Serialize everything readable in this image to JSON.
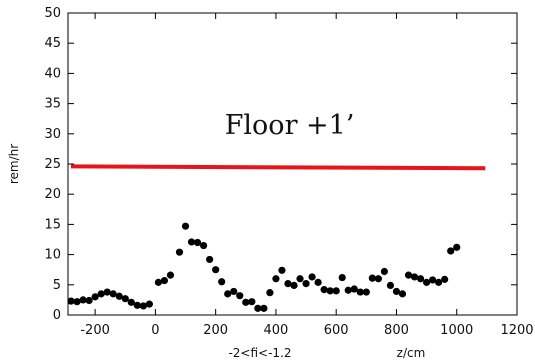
{
  "chart_data": {
    "type": "scatter",
    "title": "",
    "ylabel": "rem/hr",
    "xlabel": "z/cm",
    "x_caption": "-2<fi<-1.2",
    "xlim": [
      -290,
      1200
    ],
    "ylim": [
      0,
      50
    ],
    "xticks": [
      -200,
      0,
      200,
      400,
      600,
      800,
      1000,
      1200
    ],
    "yticks": [
      0,
      5,
      10,
      15,
      20,
      25,
      30,
      35,
      40,
      45,
      50
    ],
    "grid": false,
    "annotation": {
      "text": "Floor +1’",
      "x": 230,
      "y": 30
    },
    "reference_line": {
      "x": [
        -280,
        1095
      ],
      "y": [
        24.6,
        24.3
      ],
      "color": "#e8141b"
    },
    "marker_color": "#000000",
    "points": [
      {
        "x": -280,
        "y": 2.3
      },
      {
        "x": -260,
        "y": 2.2
      },
      {
        "x": -240,
        "y": 2.5
      },
      {
        "x": -220,
        "y": 2.4
      },
      {
        "x": -200,
        "y": 3.0
      },
      {
        "x": -180,
        "y": 3.5
      },
      {
        "x": -160,
        "y": 3.8
      },
      {
        "x": -140,
        "y": 3.5
      },
      {
        "x": -120,
        "y": 3.1
      },
      {
        "x": -100,
        "y": 2.7
      },
      {
        "x": -80,
        "y": 2.1
      },
      {
        "x": -60,
        "y": 1.6
      },
      {
        "x": -40,
        "y": 1.5
      },
      {
        "x": -20,
        "y": 1.8
      },
      {
        "x": 10,
        "y": 5.4
      },
      {
        "x": 30,
        "y": 5.7
      },
      {
        "x": 50,
        "y": 6.6
      },
      {
        "x": 80,
        "y": 10.4
      },
      {
        "x": 100,
        "y": 14.7
      },
      {
        "x": 120,
        "y": 12.1
      },
      {
        "x": 140,
        "y": 12.0
      },
      {
        "x": 160,
        "y": 11.5
      },
      {
        "x": 180,
        "y": 9.2
      },
      {
        "x": 200,
        "y": 7.5
      },
      {
        "x": 220,
        "y": 5.5
      },
      {
        "x": 240,
        "y": 3.5
      },
      {
        "x": 260,
        "y": 3.9
      },
      {
        "x": 280,
        "y": 3.2
      },
      {
        "x": 300,
        "y": 2.1
      },
      {
        "x": 320,
        "y": 2.2
      },
      {
        "x": 340,
        "y": 1.1
      },
      {
        "x": 360,
        "y": 1.1
      },
      {
        "x": 380,
        "y": 3.7
      },
      {
        "x": 400,
        "y": 6.0
      },
      {
        "x": 420,
        "y": 7.4
      },
      {
        "x": 440,
        "y": 5.2
      },
      {
        "x": 460,
        "y": 4.9
      },
      {
        "x": 480,
        "y": 6.0
      },
      {
        "x": 500,
        "y": 5.2
      },
      {
        "x": 520,
        "y": 6.3
      },
      {
        "x": 540,
        "y": 5.4
      },
      {
        "x": 560,
        "y": 4.2
      },
      {
        "x": 580,
        "y": 4.0
      },
      {
        "x": 600,
        "y": 4.0
      },
      {
        "x": 620,
        "y": 6.2
      },
      {
        "x": 640,
        "y": 4.1
      },
      {
        "x": 660,
        "y": 4.3
      },
      {
        "x": 680,
        "y": 3.8
      },
      {
        "x": 700,
        "y": 3.8
      },
      {
        "x": 720,
        "y": 6.1
      },
      {
        "x": 740,
        "y": 6.0
      },
      {
        "x": 760,
        "y": 7.2
      },
      {
        "x": 780,
        "y": 4.9
      },
      {
        "x": 800,
        "y": 3.9
      },
      {
        "x": 820,
        "y": 3.5
      },
      {
        "x": 840,
        "y": 6.6
      },
      {
        "x": 860,
        "y": 6.3
      },
      {
        "x": 880,
        "y": 6.0
      },
      {
        "x": 900,
        "y": 5.4
      },
      {
        "x": 920,
        "y": 5.8
      },
      {
        "x": 940,
        "y": 5.4
      },
      {
        "x": 960,
        "y": 5.9
      },
      {
        "x": 980,
        "y": 10.6
      },
      {
        "x": 1000,
        "y": 11.2
      }
    ]
  }
}
